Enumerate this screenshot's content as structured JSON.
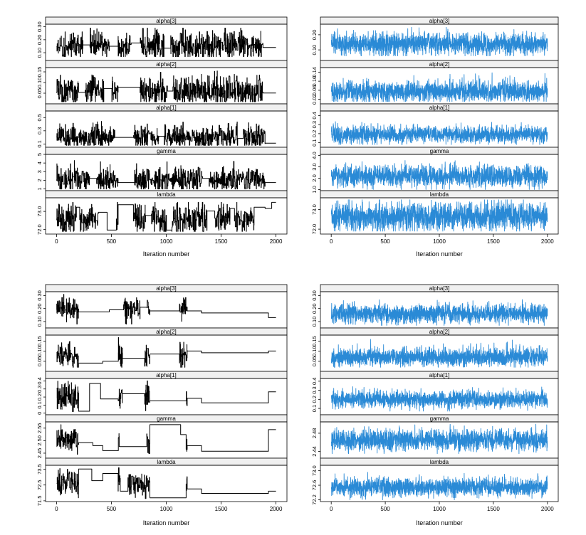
{
  "figure": {
    "xlabel": "Iteration number",
    "colors": {
      "black_trace": "#000000",
      "blue_trace": "#2a8ad6",
      "strip_fill": "#f0f0f0",
      "frame": "#000000"
    }
  },
  "chart_data": [
    {
      "type": "line",
      "panel": "top-left",
      "color": "#000000",
      "style": "sticky",
      "xlabel": "Iteration number",
      "xlim": [
        -100,
        2100
      ],
      "x_ticks": [
        "0",
        "500",
        "1000",
        "1500",
        "2000"
      ],
      "x_tick_values": [
        0,
        500,
        1000,
        1500,
        2000
      ],
      "iterations": 2000,
      "rows": [
        {
          "name": "alpha[3]",
          "ylim": [
            0.04,
            0.32
          ],
          "y_ticks": [
            "0.10",
            "0.20",
            "0.30"
          ],
          "y_tick_values": [
            0.1,
            0.2,
            0.3
          ],
          "center": 0.15,
          "spread": 0.05,
          "min": 0.07,
          "max": 0.29
        },
        {
          "name": "alpha[2]",
          "ylim": [
            0.0,
            0.17
          ],
          "y_ticks": [
            "0.05",
            "0.10",
            "0.15"
          ],
          "y_tick_values": [
            0.05,
            0.1,
            0.15
          ],
          "center": 0.06,
          "spread": 0.03,
          "min": 0.01,
          "max": 0.16
        },
        {
          "name": "alpha[1]",
          "ylim": [
            0.05,
            0.6
          ],
          "y_ticks": [
            "0.1",
            "0.3",
            "0.5"
          ],
          "y_tick_values": [
            0.1,
            0.3,
            0.5
          ],
          "center": 0.2,
          "spread": 0.08,
          "min": 0.08,
          "max": 0.55
        },
        {
          "name": "gamma",
          "ylim": [
            0.8,
            5.0
          ],
          "y_ticks": [
            "1",
            "2",
            "3",
            "4",
            "5"
          ],
          "y_tick_values": [
            1,
            2,
            3,
            4,
            5
          ],
          "center": 2.1,
          "spread": 0.6,
          "min": 1.0,
          "max": 4.3
        },
        {
          "name": "lambda",
          "ylim": [
            71.75,
            73.75
          ],
          "y_ticks": [
            "72.0",
            "73.0"
          ],
          "y_tick_values": [
            72.0,
            73.0
          ],
          "center": 72.6,
          "spread": 0.35,
          "min": 71.9,
          "max": 73.5
        }
      ]
    },
    {
      "type": "line",
      "panel": "top-right",
      "color": "#2a8ad6",
      "style": "mixing",
      "xlabel": "Iteration number",
      "xlim": [
        -100,
        2100
      ],
      "x_ticks": [
        "0",
        "500",
        "1000",
        "1500",
        "2000"
      ],
      "x_tick_values": [
        0,
        500,
        1000,
        1500,
        2000
      ],
      "iterations": 2000,
      "rows": [
        {
          "name": "alpha[3]",
          "ylim": [
            0.03,
            0.27
          ],
          "y_ticks": [
            "0.10",
            "0.20"
          ],
          "y_tick_values": [
            0.1,
            0.2
          ],
          "center": 0.14,
          "spread": 0.035,
          "min": 0.06,
          "max": 0.25
        },
        {
          "name": "alpha[2]",
          "ylim": [
            0.0,
            0.16
          ],
          "y_ticks": [
            "0.02",
            "0.06",
            "0.10",
            "0.14"
          ],
          "y_tick_values": [
            0.02,
            0.06,
            0.1,
            0.14
          ],
          "center": 0.055,
          "spread": 0.022,
          "min": 0.01,
          "max": 0.15
        },
        {
          "name": "alpha[1]",
          "ylim": [
            0.05,
            0.45
          ],
          "y_ticks": [
            "0.1",
            "0.2",
            "0.3",
            "0.4"
          ],
          "y_tick_values": [
            0.1,
            0.2,
            0.3,
            0.4
          ],
          "center": 0.19,
          "spread": 0.045,
          "min": 0.08,
          "max": 0.41
        },
        {
          "name": "gamma",
          "ylim": [
            0.9,
            4.1
          ],
          "y_ticks": [
            "1.0",
            "2.0",
            "3.0",
            "4.0"
          ],
          "y_tick_values": [
            1.0,
            2.0,
            3.0,
            4.0
          ],
          "center": 2.2,
          "spread": 0.45,
          "min": 1.0,
          "max": 3.9
        },
        {
          "name": "lambda",
          "ylim": [
            71.75,
            73.6
          ],
          "y_ticks": [
            "72.0",
            "73.0"
          ],
          "y_tick_values": [
            72.0,
            73.0
          ],
          "center": 72.65,
          "spread": 0.35,
          "min": 71.9,
          "max": 73.5
        }
      ]
    },
    {
      "type": "line",
      "panel": "bottom-left",
      "color": "#000000",
      "style": "stuck",
      "xlabel": "Iteration number",
      "xlim": [
        -100,
        2100
      ],
      "x_ticks": [
        "0",
        "500",
        "1000",
        "1500",
        "2000"
      ],
      "x_tick_values": [
        0,
        500,
        1000,
        1500,
        2000
      ],
      "iterations": 2000,
      "rows": [
        {
          "name": "alpha[3]",
          "ylim": [
            0.05,
            0.33
          ],
          "y_ticks": [
            "0.10",
            "0.20",
            "0.30"
          ],
          "y_tick_values": [
            0.1,
            0.2,
            0.3
          ],
          "center": 0.19,
          "spread": 0.04,
          "min": 0.08,
          "max": 0.31
        },
        {
          "name": "alpha[2]",
          "ylim": [
            0.0,
            0.18
          ],
          "y_ticks": [
            "0.05",
            "0.10",
            "0.15"
          ],
          "y_tick_values": [
            0.05,
            0.1,
            0.15
          ],
          "center": 0.08,
          "spread": 0.03,
          "min": 0.02,
          "max": 0.17
        },
        {
          "name": "alpha[1]",
          "ylim": [
            -0.02,
            0.43
          ],
          "y_ticks": [
            "0",
            "0.1",
            "0.2",
            "0.3",
            "0.4"
          ],
          "y_tick_values": [
            0,
            0.1,
            0.2,
            0.3,
            0.4
          ],
          "center": 0.2,
          "spread": 0.08,
          "min": 0.02,
          "max": 0.4
        },
        {
          "name": "gamma",
          "ylim": [
            2.43,
            2.575
          ],
          "y_ticks": [
            "2.45",
            "2.50",
            "2.55"
          ],
          "y_tick_values": [
            2.45,
            2.5,
            2.55
          ],
          "center": 2.5,
          "spread": 0.02,
          "min": 2.445,
          "max": 2.565
        },
        {
          "name": "lambda",
          "ylim": [
            71.45,
            73.75
          ],
          "y_ticks": [
            "71.5",
            "72.5",
            "73.5"
          ],
          "y_tick_values": [
            71.5,
            72.5,
            73.5
          ],
          "center": 72.6,
          "spread": 0.35,
          "min": 71.6,
          "max": 73.6
        }
      ]
    },
    {
      "type": "line",
      "panel": "bottom-right",
      "color": "#2a8ad6",
      "style": "mixing",
      "xlabel": "Iteration number",
      "xlim": [
        -100,
        2100
      ],
      "x_ticks": [
        "0",
        "500",
        "1000",
        "1500",
        "2000"
      ],
      "x_tick_values": [
        0,
        500,
        1000,
        1500,
        2000
      ],
      "iterations": 2000,
      "rows": [
        {
          "name": "alpha[3]",
          "ylim": [
            0.05,
            0.33
          ],
          "y_ticks": [
            "0.10",
            "0.20",
            "0.30"
          ],
          "y_tick_values": [
            0.1,
            0.2,
            0.3
          ],
          "center": 0.16,
          "spread": 0.035,
          "min": 0.07,
          "max": 0.3
        },
        {
          "name": "alpha[2]",
          "ylim": [
            0.0,
            0.18
          ],
          "y_ticks": [
            "0.05",
            "0.10",
            "0.15"
          ],
          "y_tick_values": [
            0.05,
            0.1,
            0.15
          ],
          "center": 0.07,
          "spread": 0.022,
          "min": 0.02,
          "max": 0.17
        },
        {
          "name": "alpha[1]",
          "ylim": [
            0.03,
            0.43
          ],
          "y_ticks": [
            "0.1",
            "0.2",
            "0.3",
            "0.4"
          ],
          "y_tick_values": [
            0.1,
            0.2,
            0.3,
            0.4
          ],
          "center": 0.2,
          "spread": 0.045,
          "min": 0.07,
          "max": 0.41
        },
        {
          "name": "gamma",
          "ylim": [
            2.425,
            2.505
          ],
          "y_ticks": [
            "2.44",
            "2.48"
          ],
          "y_tick_values": [
            2.44,
            2.48
          ],
          "center": 2.465,
          "spread": 0.011,
          "min": 2.435,
          "max": 2.5
        },
        {
          "name": "lambda",
          "ylim": [
            72.15,
            73.15
          ],
          "y_ticks": [
            "72.2",
            "72.6",
            "73.0"
          ],
          "y_tick_values": [
            72.2,
            72.6,
            73.0
          ],
          "center": 72.55,
          "spread": 0.12,
          "min": 72.2,
          "max": 73.05
        }
      ]
    }
  ]
}
